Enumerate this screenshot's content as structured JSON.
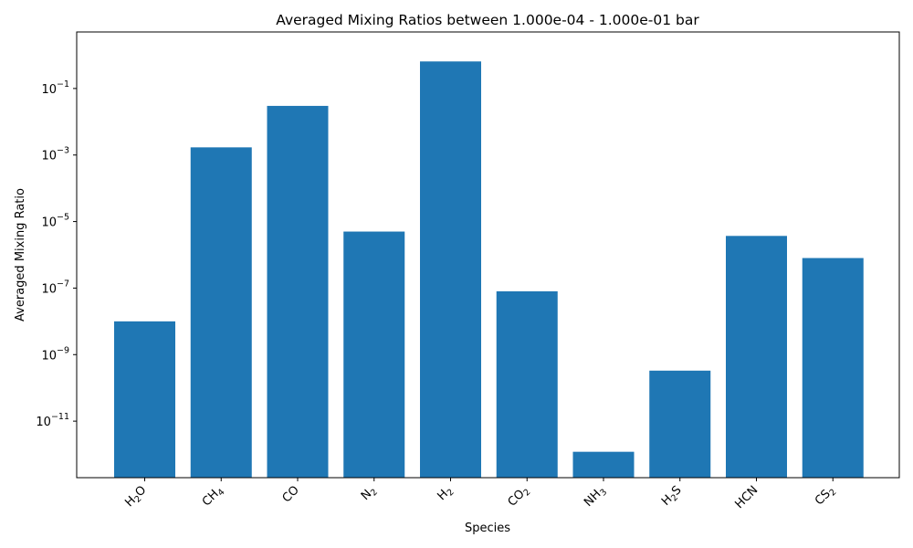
{
  "chart_data": {
    "type": "bar",
    "title": "Averaged Mixing Ratios between 1.000e-04 - 1.000e-01 bar",
    "xlabel": "Species",
    "ylabel": "Averaged Mixing Ratio",
    "yscale": "log",
    "ylim": [
      2e-13,
      5
    ],
    "yticks": [
      {
        "base": "10",
        "exp": "−11",
        "value": 1e-11
      },
      {
        "base": "10",
        "exp": "−9",
        "value": 1e-09
      },
      {
        "base": "10",
        "exp": "−7",
        "value": 1e-07
      },
      {
        "base": "10",
        "exp": "−5",
        "value": 1e-05
      },
      {
        "base": "10",
        "exp": "−3",
        "value": 0.001
      },
      {
        "base": "10",
        "exp": "−1",
        "value": 0.1
      }
    ],
    "categories": [
      {
        "main": "H",
        "sub": "2",
        "rest": "O"
      },
      {
        "main": "CH",
        "sub": "4",
        "rest": ""
      },
      {
        "main": "CO",
        "sub": "",
        "rest": ""
      },
      {
        "main": "N",
        "sub": "2",
        "rest": ""
      },
      {
        "main": "H",
        "sub": "2",
        "rest": ""
      },
      {
        "main": "CO",
        "sub": "2",
        "rest": ""
      },
      {
        "main": "NH",
        "sub": "3",
        "rest": ""
      },
      {
        "main": "H",
        "sub": "2",
        "rest": "S"
      },
      {
        "main": "HCN",
        "sub": "",
        "rest": ""
      },
      {
        "main": "CS",
        "sub": "2",
        "rest": ""
      }
    ],
    "values": [
      1e-08,
      0.0017,
      0.03,
      5e-06,
      0.65,
      8e-08,
      1.2e-12,
      3.3e-10,
      3.7e-06,
      8e-07
    ],
    "bar_color": "#1f77b4",
    "grid": false,
    "legend": "none"
  }
}
